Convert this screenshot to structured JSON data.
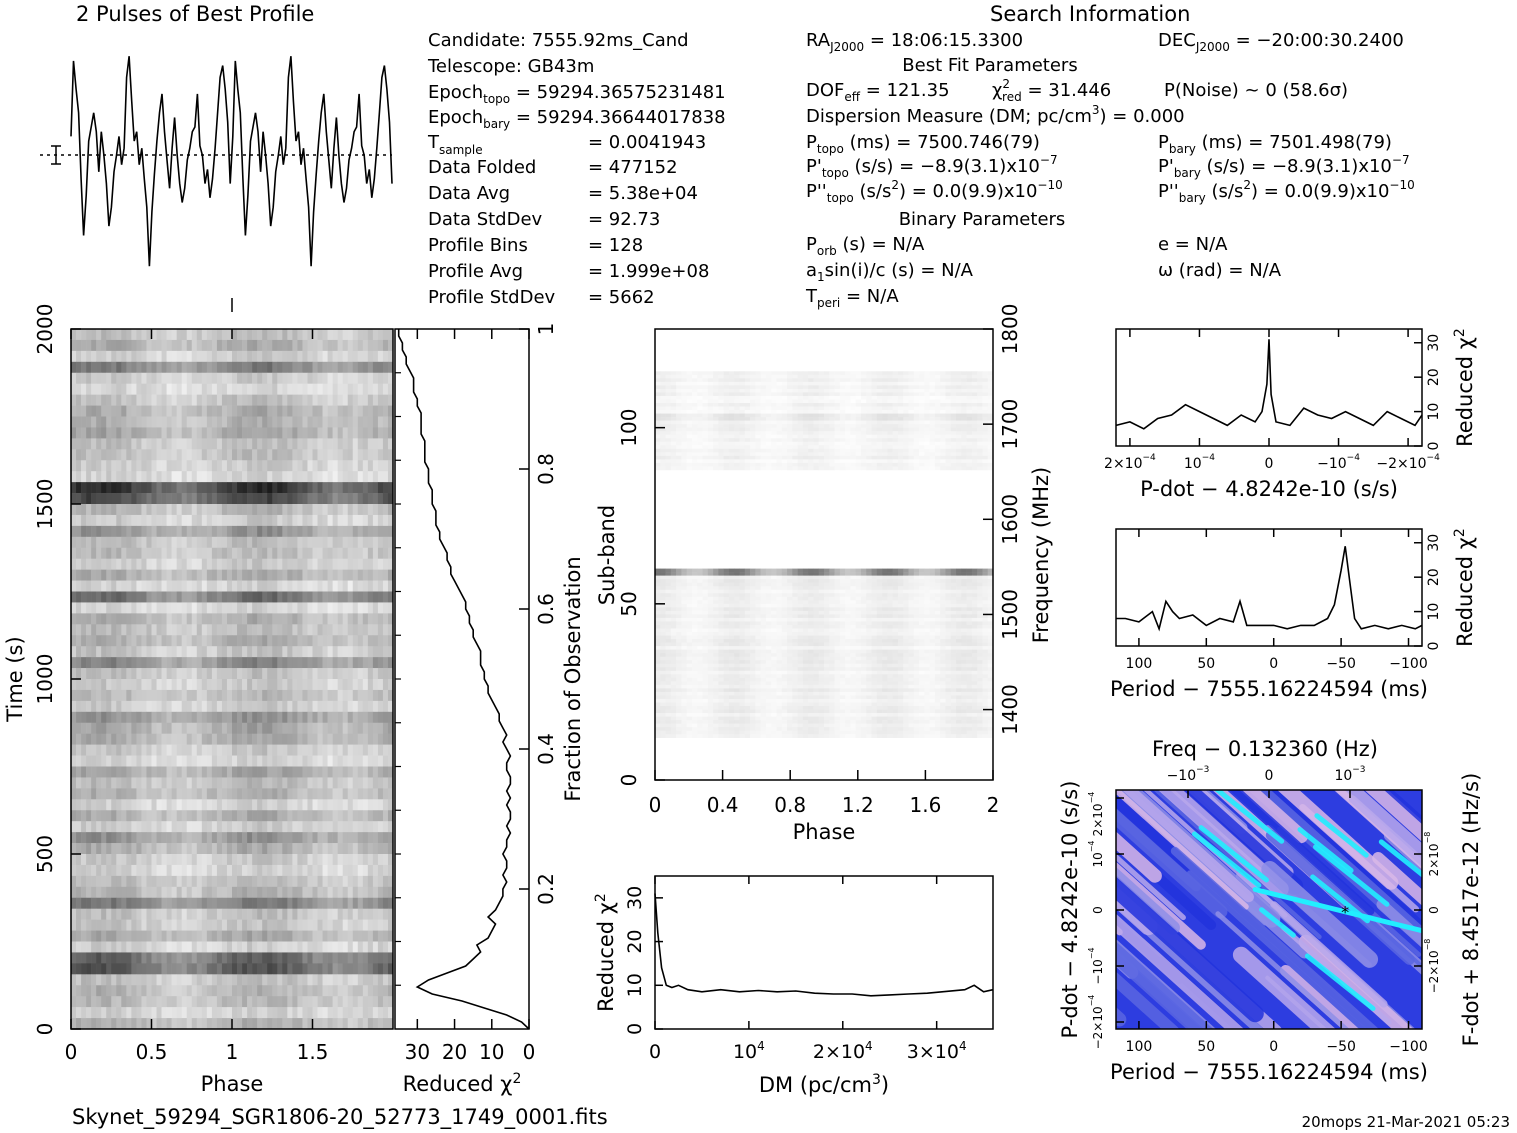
{
  "file_name": "Skynet_59294_SGR1806-20_52773_1749_0001.fits",
  "footer_stamp": "20mops 21-Mar-2021 05:23",
  "profile_title": "2 Pulses of Best Profile",
  "search_title": "Search Information",
  "info": {
    "candidate": "Candidate:  7555.92ms_Cand",
    "telescope": "Telescope:  GB43m",
    "epoch_topo_label": "Epoch",
    "epoch_topo_sub": "topo",
    "epoch_topo_value": " = 59294.36575231481",
    "epoch_bary_label": "Epoch",
    "epoch_bary_sub": "bary",
    "epoch_bary_value": " = 59294.36644017838",
    "tsample_label": "T",
    "tsample_sub": "sample",
    "tsample_value": "=   0.0041943",
    "rows": [
      {
        "label": "Data Folded",
        "value": "=   477152"
      },
      {
        "label": "Data Avg",
        "value": "=   5.38e+04"
      },
      {
        "label": "Data StdDev",
        "value": "=   92.73"
      },
      {
        "label": "Profile Bins",
        "value": "=   128"
      },
      {
        "label": "Profile Avg",
        "value": "=   1.999e+08"
      },
      {
        "label": "Profile StdDev",
        "value": "=   5662"
      }
    ]
  },
  "search": {
    "ra_label": "RA",
    "ra_sub": "J2000",
    "ra_value": " = 18:06:15.3300",
    "dec_label": "DEC",
    "dec_sub": "J2000",
    "dec_value": " = −20:00:30.2400",
    "best_fit_title": "Best Fit Parameters",
    "dof_label": "DOF",
    "dof_sub": "eff",
    "dof_value": " = 121.35",
    "chi_label": "χ",
    "chi_sup": "2",
    "chi_sub": "red",
    "chi_value": " = 31.446",
    "pnoise": "P(Noise) ~ 0    (58.6σ)",
    "dm_line_a": "Dispersion Measure (DM; pc/cm",
    "dm_line_sup": "3",
    "dm_line_b": ") = 0.000",
    "ptopo_label": "P",
    "ptopo_sub": "topo",
    "ptopo_value": " (ms) =  7500.746(79)",
    "pbary_label": "P",
    "pbary_sub": "bary",
    "pbary_value": " (ms) =  7501.498(79)",
    "pdtopo_label": "P'",
    "pdtopo_sub": "topo",
    "pdtopo_value": " (s/s) = −8.9(3.1)x10",
    "pdtopo_exp": "−7",
    "pdbary_label": "P'",
    "pdbary_sub": "bary",
    "pdbary_value": " (s/s) = −8.9(3.1)x10",
    "pdbary_exp": "−7",
    "pddtopo_label": "P''",
    "pddtopo_sub": "topo",
    "pddtopo_value": " (s/s",
    "pddtopo_sup": "2",
    "pddtopo_value2": ") = 0.0(9.9)x10",
    "pddtopo_exp": "−10",
    "pddbary_label": "P''",
    "pddbary_sub": "bary",
    "pddbary_value": " (s/s",
    "pddbary_sup": "2",
    "pddbary_value2": ") = 0.0(9.9)x10",
    "pddbary_exp": "−10",
    "binary_title": "Binary Parameters",
    "porb_label": "P",
    "porb_sub": "orb",
    "porb_value": " (s) = N/A",
    "ecc": "e = N/A",
    "asini_label": "a",
    "asini_sub": "1",
    "asini_value": "sin(i)/c (s) = N/A",
    "omega": "ω (rad) = N/A",
    "tperi_label": "T",
    "tperi_sub": "peri",
    "tperi_value": " = N/A"
  },
  "colors": {
    "grey_dark": "#303030",
    "heat_low": "#2233dd",
    "heat_mid": "#d9b8e8",
    "heat_high": "#22eeff"
  },
  "chart_data": [
    {
      "type": "line",
      "id": "profile",
      "title": "2 Pulses of Best Profile",
      "x_range": [
        0,
        2
      ],
      "values": [
        0.6,
        0.92,
        0.8,
        0.7,
        0.42,
        0.18,
        0.35,
        0.58,
        0.64,
        0.7,
        0.62,
        0.45,
        0.62,
        0.52,
        0.4,
        0.22,
        0.3,
        0.45,
        0.52,
        0.6,
        0.48,
        0.55,
        0.85,
        0.94,
        0.75,
        0.58,
        0.62,
        0.48,
        0.55,
        0.42,
        0.3,
        0.05,
        0.28,
        0.44,
        0.58,
        0.7,
        0.78,
        0.62,
        0.5,
        0.38,
        0.55,
        0.68,
        0.52,
        0.4,
        0.32,
        0.38,
        0.5,
        0.55,
        0.62,
        0.64,
        0.78,
        0.56,
        0.52,
        0.4,
        0.46,
        0.34,
        0.42,
        0.55,
        0.7,
        0.85,
        0.9,
        0.8,
        0.66,
        0.4,
        0.6,
        0.92,
        0.8,
        0.7,
        0.42,
        0.18,
        0.35,
        0.58,
        0.64,
        0.7,
        0.62,
        0.45,
        0.62,
        0.52,
        0.4,
        0.22,
        0.3,
        0.45,
        0.52,
        0.6,
        0.48,
        0.55,
        0.85,
        0.94,
        0.75,
        0.58,
        0.62,
        0.48,
        0.55,
        0.42,
        0.3,
        0.05,
        0.28,
        0.44,
        0.58,
        0.7,
        0.78,
        0.62,
        0.5,
        0.38,
        0.55,
        0.68,
        0.52,
        0.4,
        0.32,
        0.38,
        0.5,
        0.55,
        0.62,
        0.64,
        0.78,
        0.56,
        0.52,
        0.4,
        0.46,
        0.34,
        0.42,
        0.55,
        0.7,
        0.85,
        0.9,
        0.8,
        0.66,
        0.4
      ]
    },
    {
      "type": "heatmap",
      "id": "time-phase",
      "xlabel": "Phase",
      "ylabel": "Time (s)",
      "x_ticks": [
        "0",
        "0.5",
        "1",
        "1.5"
      ],
      "x_tick_values": [
        0,
        0.5,
        1,
        1.5
      ],
      "xlim": [
        0,
        2
      ],
      "y_ticks": [
        "0",
        "500",
        "1000",
        "1500",
        "2000"
      ],
      "y_tick_values": [
        0,
        500,
        1000,
        1500,
        2000
      ],
      "ylim": [
        0,
        2000
      ],
      "right_ylabel": "Fraction of Observation",
      "right_ticks": [
        "0.2",
        "0.4",
        "0.6",
        "0.8",
        "1"
      ],
      "right_tick_values": [
        0.2,
        0.4,
        0.6,
        0.8,
        1
      ]
    },
    {
      "type": "line",
      "id": "time-chi",
      "xlabel": "Reduced χ",
      "xlabel_sup": "2",
      "x_ticks": [
        "30",
        "20",
        "10",
        "0"
      ],
      "x_tick_values": [
        30,
        20,
        10,
        0
      ],
      "xlim": [
        36,
        0
      ],
      "points": [
        [
          0,
          0.0
        ],
        [
          2,
          0.01
        ],
        [
          6,
          0.02
        ],
        [
          12,
          0.03
        ],
        [
          18,
          0.04
        ],
        [
          26,
          0.05
        ],
        [
          30,
          0.06
        ],
        [
          27,
          0.07
        ],
        [
          22,
          0.08
        ],
        [
          17,
          0.09
        ],
        [
          15,
          0.1
        ],
        [
          13,
          0.11
        ],
        [
          14,
          0.12
        ],
        [
          11,
          0.13
        ],
        [
          10,
          0.14
        ],
        [
          9,
          0.15
        ],
        [
          11,
          0.16
        ],
        [
          9,
          0.17
        ],
        [
          8,
          0.18
        ],
        [
          7,
          0.19
        ],
        [
          7,
          0.2
        ],
        [
          6,
          0.21
        ],
        [
          7,
          0.22
        ],
        [
          6,
          0.23
        ],
        [
          6,
          0.24
        ],
        [
          7,
          0.25
        ],
        [
          6,
          0.26
        ],
        [
          6,
          0.27
        ],
        [
          5,
          0.28
        ],
        [
          6,
          0.29
        ],
        [
          5,
          0.3
        ],
        [
          5,
          0.31
        ],
        [
          6,
          0.32
        ],
        [
          5,
          0.33
        ],
        [
          6,
          0.34
        ],
        [
          5,
          0.35
        ],
        [
          5,
          0.36
        ],
        [
          6,
          0.37
        ],
        [
          6,
          0.38
        ],
        [
          5,
          0.39
        ],
        [
          6,
          0.4
        ],
        [
          7,
          0.41
        ],
        [
          6,
          0.42
        ],
        [
          7,
          0.43
        ],
        [
          8,
          0.44
        ],
        [
          8,
          0.45
        ],
        [
          9,
          0.46
        ],
        [
          10,
          0.47
        ],
        [
          11,
          0.48
        ],
        [
          11,
          0.49
        ],
        [
          12,
          0.5
        ],
        [
          12,
          0.51
        ],
        [
          13,
          0.52
        ],
        [
          13,
          0.53
        ],
        [
          13,
          0.54
        ],
        [
          14,
          0.55
        ],
        [
          15,
          0.56
        ],
        [
          15,
          0.57
        ],
        [
          16,
          0.58
        ],
        [
          16,
          0.59
        ],
        [
          17,
          0.6
        ],
        [
          17,
          0.61
        ],
        [
          18,
          0.62
        ],
        [
          19,
          0.63
        ],
        [
          20,
          0.64
        ],
        [
          21,
          0.65
        ],
        [
          21,
          0.66
        ],
        [
          22,
          0.67
        ],
        [
          22,
          0.68
        ],
        [
          23,
          0.69
        ],
        [
          24,
          0.7
        ],
        [
          24,
          0.71
        ],
        [
          25,
          0.72
        ],
        [
          25,
          0.73
        ],
        [
          25,
          0.74
        ],
        [
          26,
          0.75
        ],
        [
          26,
          0.76
        ],
        [
          26,
          0.77
        ],
        [
          27,
          0.78
        ],
        [
          27,
          0.79
        ],
        [
          27,
          0.8
        ],
        [
          28,
          0.81
        ],
        [
          28,
          0.82
        ],
        [
          28,
          0.83
        ],
        [
          28,
          0.84
        ],
        [
          29,
          0.85
        ],
        [
          29,
          0.86
        ],
        [
          29,
          0.87
        ],
        [
          29,
          0.88
        ],
        [
          30,
          0.89
        ],
        [
          30,
          0.9
        ],
        [
          31,
          0.91
        ],
        [
          31,
          0.92
        ],
        [
          31,
          0.93
        ],
        [
          32,
          0.94
        ],
        [
          33,
          0.95
        ],
        [
          33,
          0.96
        ],
        [
          34,
          0.97
        ],
        [
          34,
          0.98
        ],
        [
          35,
          0.99
        ],
        [
          35,
          1.0
        ]
      ]
    },
    {
      "type": "heatmap",
      "id": "subband-phase",
      "xlabel": "Phase",
      "ylabel": "Sub-band",
      "x_ticks": [
        "0",
        "0.4",
        "0.8",
        "1.2",
        "1.6",
        "2"
      ],
      "x_tick_values": [
        0,
        0.4,
        0.8,
        1.2,
        1.6,
        2
      ],
      "xlim": [
        0,
        2
      ],
      "y_ticks": [
        "0",
        "50",
        "100"
      ],
      "y_tick_values": [
        0,
        50,
        100
      ],
      "ylim": [
        0,
        128
      ],
      "right_ylabel": "Frequency (MHz)",
      "right_ticks": [
        "1400",
        "1500",
        "1600",
        "1700",
        "1800"
      ],
      "right_tick_values": [
        1400,
        1500,
        1600,
        1700,
        1800
      ],
      "right_lim": [
        1326,
        1800
      ]
    },
    {
      "type": "line",
      "id": "dm-chi",
      "xlabel": "DM (pc/cm",
      "xlabel_sup": "3",
      "xlabel_end": ")",
      "ylabel": "Reduced χ",
      "ylabel_sup": "2",
      "x_ticks": [
        "0",
        "10",
        "2×10",
        "3×10"
      ],
      "x_tick_exp": [
        "",
        "4",
        "4",
        "4"
      ],
      "x_tick_values": [
        0,
        10000,
        20000,
        30000
      ],
      "xlim": [
        0,
        36000
      ],
      "y_ticks": [
        "0",
        "10",
        "20",
        "30"
      ],
      "y_tick_values": [
        0,
        10,
        20,
        30
      ],
      "ylim": [
        0,
        35
      ],
      "points": [
        [
          0,
          31
        ],
        [
          300,
          22
        ],
        [
          700,
          14
        ],
        [
          1200,
          10
        ],
        [
          1800,
          9.5
        ],
        [
          2500,
          10
        ],
        [
          3500,
          9
        ],
        [
          5000,
          8.5
        ],
        [
          7000,
          9
        ],
        [
          9000,
          8.5
        ],
        [
          11000,
          8.8
        ],
        [
          13000,
          8.5
        ],
        [
          15000,
          8.7
        ],
        [
          17000,
          8.2
        ],
        [
          19000,
          8.0
        ],
        [
          21000,
          8.0
        ],
        [
          23000,
          7.6
        ],
        [
          25000,
          7.8
        ],
        [
          27000,
          8.0
        ],
        [
          29000,
          8.2
        ],
        [
          31000,
          8.6
        ],
        [
          33000,
          9.0
        ],
        [
          34000,
          10.0
        ],
        [
          35000,
          8.5
        ],
        [
          36000,
          9.0
        ]
      ]
    },
    {
      "type": "line",
      "id": "pdot-chi",
      "xlabel": "P-dot − 4.8242e-10 (s/s)",
      "ylabel": "Reduced χ",
      "ylabel_sup": "2",
      "x_ticks": [
        "2×10",
        "10",
        "0",
        "−10",
        "−2×10"
      ],
      "x_tick_exp": [
        "−4",
        "−4",
        "",
        "−4",
        "−4"
      ],
      "x_tick_values": [
        0.0002,
        0.0001,
        0,
        -0.0001,
        -0.0002
      ],
      "xlim": [
        0.00022,
        -0.00022
      ],
      "y_ticks": [
        "0",
        "10",
        "20",
        "30"
      ],
      "y_tick_values": [
        0,
        10,
        20,
        30
      ],
      "ylim": [
        0,
        34
      ],
      "points": [
        [
          0.00022,
          6
        ],
        [
          0.0002,
          7
        ],
        [
          0.00018,
          5
        ],
        [
          0.00016,
          8
        ],
        [
          0.00014,
          9
        ],
        [
          0.00012,
          12
        ],
        [
          0.0001,
          10
        ],
        [
          8e-05,
          8
        ],
        [
          6e-05,
          6
        ],
        [
          4e-05,
          9
        ],
        [
          2e-05,
          7
        ],
        [
          1e-05,
          10
        ],
        [
          3e-06,
          18
        ],
        [
          0.0,
          31
        ],
        [
          -3e-06,
          15
        ],
        [
          -1e-05,
          7
        ],
        [
          -3e-05,
          6
        ],
        [
          -5e-05,
          11
        ],
        [
          -7e-05,
          9
        ],
        [
          -9e-05,
          8
        ],
        [
          -0.00011,
          10
        ],
        [
          -0.00013,
          8
        ],
        [
          -0.00015,
          6
        ],
        [
          -0.00017,
          10
        ],
        [
          -0.00019,
          8
        ],
        [
          -0.00021,
          6
        ],
        [
          -0.00022,
          9
        ]
      ]
    },
    {
      "type": "line",
      "id": "period-chi",
      "xlabel": "Period − 7555.16224594 (ms)",
      "ylabel": "Reduced χ",
      "ylabel_sup": "2",
      "x_ticks": [
        "100",
        "50",
        "0",
        "−50",
        "−100"
      ],
      "x_tick_values": [
        100,
        50,
        0,
        -50,
        -100
      ],
      "xlim": [
        117,
        -110
      ],
      "y_ticks": [
        "0",
        "10",
        "20",
        "30"
      ],
      "y_tick_values": [
        0,
        10,
        20,
        30
      ],
      "ylim": [
        0,
        34
      ],
      "points": [
        [
          117,
          8
        ],
        [
          110,
          8
        ],
        [
          100,
          7
        ],
        [
          90,
          10
        ],
        [
          85,
          5
        ],
        [
          80,
          13
        ],
        [
          75,
          10
        ],
        [
          70,
          8
        ],
        [
          60,
          9
        ],
        [
          50,
          6
        ],
        [
          40,
          8
        ],
        [
          30,
          7
        ],
        [
          25,
          13
        ],
        [
          20,
          6
        ],
        [
          10,
          6
        ],
        [
          0,
          6
        ],
        [
          -10,
          5
        ],
        [
          -20,
          6
        ],
        [
          -30,
          6
        ],
        [
          -40,
          8
        ],
        [
          -45,
          12
        ],
        [
          -50,
          22
        ],
        [
          -53,
          29
        ],
        [
          -56,
          20
        ],
        [
          -60,
          8
        ],
        [
          -65,
          5
        ],
        [
          -75,
          6
        ],
        [
          -85,
          5
        ],
        [
          -95,
          6
        ],
        [
          -105,
          5
        ],
        [
          -110,
          6
        ]
      ]
    },
    {
      "type": "heatmap",
      "id": "period-pdot",
      "title": "Freq − 0.132360 (Hz)",
      "xlabel": "Period − 7555.16224594 (ms)",
      "ylabel": "P-dot − 4.8242e-10 (s/s)",
      "right_ylabel": "F-dot + 8.4517e-12 (Hz/s)",
      "x_ticks": [
        "100",
        "50",
        "0",
        "−50",
        "−100"
      ],
      "x_tick_values": [
        100,
        50,
        0,
        -50,
        -100
      ],
      "xlim": [
        117,
        -110
      ],
      "top_ticks": [
        "−10",
        "0",
        "10"
      ],
      "top_tick_exp": [
        "−3",
        "",
        "−3"
      ],
      "left_ticks": [
        "2×10",
        "10",
        "0",
        "−10",
        "−2×10"
      ],
      "left_tick_exp": [
        "−4",
        "−4",
        "",
        "−4",
        "−4"
      ],
      "right_ticks": [
        "2×10",
        "0",
        "−2×10"
      ],
      "right_tick_exp": [
        "−8",
        "",
        "−8"
      ],
      "best_period": -53,
      "best_pdot": 0.0
    }
  ]
}
